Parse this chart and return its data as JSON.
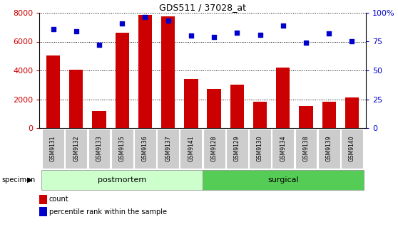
{
  "title": "GDS511 / 37028_at",
  "samples": [
    "GSM9131",
    "GSM9132",
    "GSM9133",
    "GSM9135",
    "GSM9136",
    "GSM9137",
    "GSM9141",
    "GSM9128",
    "GSM9129",
    "GSM9130",
    "GSM9134",
    "GSM9138",
    "GSM9139",
    "GSM9140"
  ],
  "counts": [
    5050,
    4050,
    1200,
    6600,
    7850,
    7750,
    3400,
    2700,
    3000,
    1850,
    4200,
    1550,
    1850,
    2100
  ],
  "percentiles": [
    86,
    84,
    72,
    91,
    96,
    93,
    80,
    79,
    83,
    81,
    89,
    74,
    82,
    75
  ],
  "bar_color": "#cc0000",
  "dot_color": "#0000cc",
  "ylim_left": [
    0,
    8000
  ],
  "ylim_right": [
    0,
    100
  ],
  "yticks_left": [
    0,
    2000,
    4000,
    6000,
    8000
  ],
  "yticks_right": [
    0,
    25,
    50,
    75,
    100
  ],
  "ylabel_left_color": "#cc0000",
  "ylabel_right_color": "#0000cc",
  "pm_count": 7,
  "postmortem_color": "#ccffcc",
  "surgical_color": "#55cc55",
  "tick_label_bg": "#cccccc",
  "specimen_label": "specimen",
  "legend_count": "count",
  "legend_percentile": "percentile rank within the sample",
  "figsize": [
    5.58,
    3.36
  ],
  "dpi": 100
}
